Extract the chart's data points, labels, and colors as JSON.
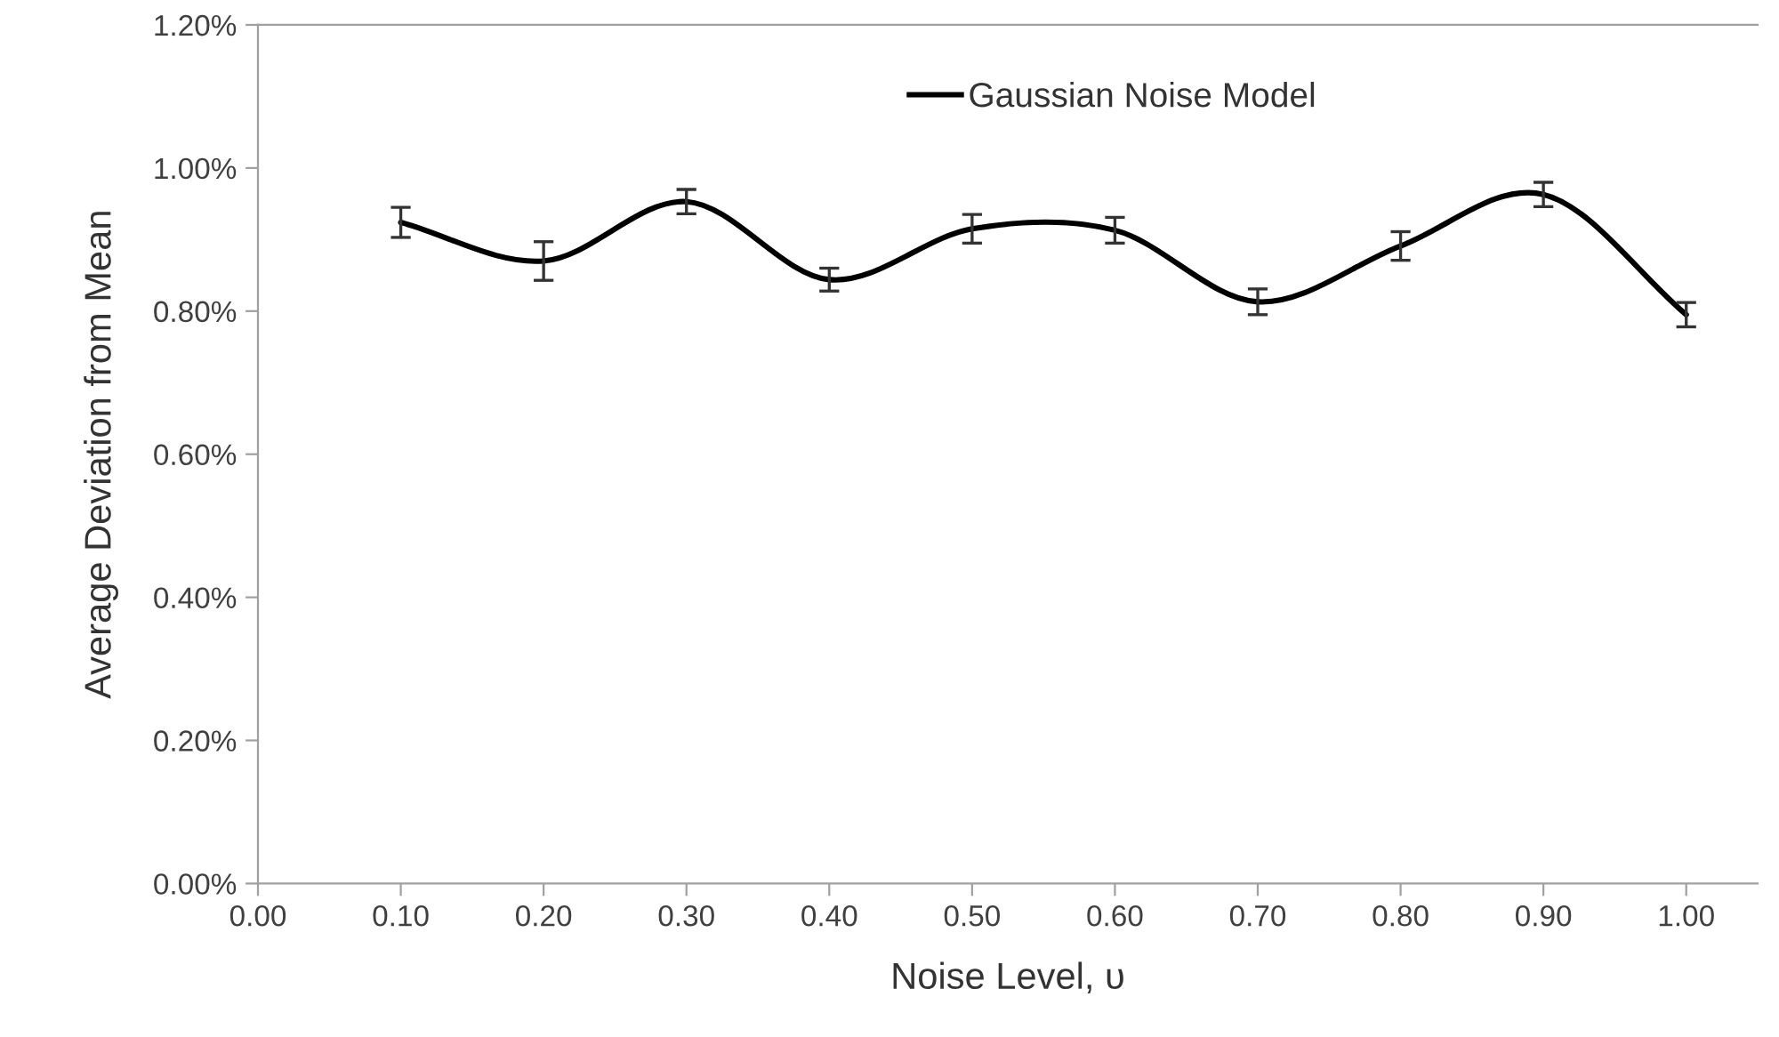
{
  "chart_data": {
    "type": "line",
    "xlabel": "Noise Level, υ",
    "ylabel": "Average Deviation from Mean",
    "x": [
      0.1,
      0.2,
      0.3,
      0.4,
      0.5,
      0.6,
      0.7,
      0.8,
      0.9,
      1.0
    ],
    "series": [
      {
        "name": "Gaussian Noise Model",
        "color": "#000000",
        "values": [
          0.924,
          0.87,
          0.953,
          0.844,
          0.915,
          0.913,
          0.813,
          0.891,
          0.963,
          0.795
        ],
        "errors": [
          0.021,
          0.027,
          0.017,
          0.016,
          0.02,
          0.018,
          0.018,
          0.02,
          0.017,
          0.017
        ]
      }
    ],
    "xlim": [
      0,
      1.05
    ],
    "xticks": [
      {
        "value": 0,
        "label": "0.00"
      },
      {
        "value": 0.1,
        "label": "0.10"
      },
      {
        "value": 0.2,
        "label": "0.20"
      },
      {
        "value": 0.3,
        "label": "0.30"
      },
      {
        "value": 0.4,
        "label": "0.40"
      },
      {
        "value": 0.5,
        "label": "0.50"
      },
      {
        "value": 0.6,
        "label": "0.60"
      },
      {
        "value": 0.7,
        "label": "0.70"
      },
      {
        "value": 0.8,
        "label": "0.80"
      },
      {
        "value": 0.9,
        "label": "0.90"
      },
      {
        "value": 1.0,
        "label": "1.00"
      }
    ],
    "ylim": [
      0,
      1.2
    ],
    "yticks": [
      {
        "value": 0,
        "label": "0.00%"
      },
      {
        "value": 0.2,
        "label": "0.20%"
      },
      {
        "value": 0.4,
        "label": "0.40%"
      },
      {
        "value": 0.6,
        "label": "0.60%"
      },
      {
        "value": 0.8,
        "label": "0.80%"
      },
      {
        "value": 1.0,
        "label": "1.00%"
      },
      {
        "value": 1.2,
        "label": "1.20%"
      }
    ],
    "grid": false,
    "legend": "top",
    "line_style": "solid",
    "marker": "none"
  }
}
